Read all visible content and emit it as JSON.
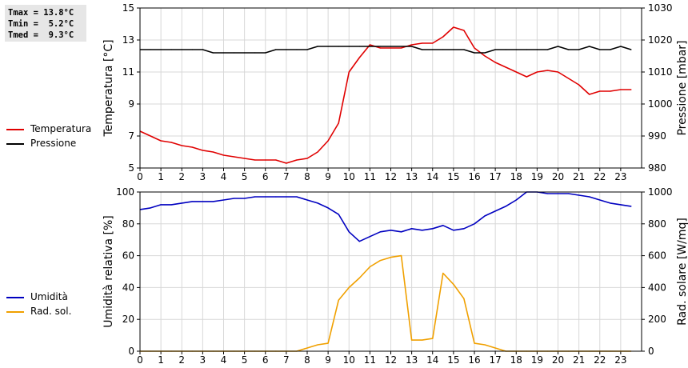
{
  "stats": {
    "tmax_label": "Tmax =",
    "tmax_value": "13.8°C",
    "tmin_label": "Tmin =",
    "tmin_value": "5.2°C",
    "tmed_label": "Tmed =",
    "tmed_value": "9.3°C"
  },
  "legends": {
    "temperatura": {
      "label": "Temperatura",
      "color": "#e00000"
    },
    "pressione": {
      "label": "Pressione",
      "color": "#000000"
    },
    "umidita": {
      "label": "Umidità",
      "color": "#0000c0"
    },
    "radsol": {
      "label": "Rad. sol.",
      "color": "#f0a000"
    }
  },
  "chart_data": [
    {
      "type": "line",
      "xlabel": "",
      "xlim": [
        0,
        24
      ],
      "xticks": [
        0,
        1,
        2,
        3,
        4,
        5,
        6,
        7,
        8,
        9,
        10,
        11,
        12,
        13,
        14,
        15,
        16,
        17,
        18,
        19,
        20,
        21,
        22,
        23
      ],
      "grid": true,
      "y_left": {
        "label": "Temperatura [°C]",
        "lim": [
          5,
          15
        ],
        "ticks": [
          5,
          7,
          9,
          11,
          13,
          15
        ]
      },
      "y_right": {
        "label": "Pressione [mbar]",
        "lim": [
          980,
          1030
        ],
        "ticks": [
          980,
          990,
          1000,
          1010,
          1020,
          1030
        ]
      },
      "series": [
        {
          "name": "Temperatura",
          "axis": "left",
          "color": "#e00000",
          "x": [
            0,
            0.5,
            1,
            1.5,
            2,
            2.5,
            3,
            3.5,
            4,
            4.5,
            5,
            5.5,
            6,
            6.5,
            7,
            7.5,
            8,
            8.5,
            9,
            9.5,
            10,
            10.5,
            11,
            11.5,
            12,
            12.5,
            13,
            13.5,
            14,
            14.5,
            15,
            15.5,
            16,
            16.5,
            17,
            17.5,
            18,
            18.5,
            19,
            19.5,
            20,
            20.5,
            21,
            21.5,
            22,
            22.5,
            23,
            23.5
          ],
          "values": [
            7.3,
            7.0,
            6.7,
            6.6,
            6.4,
            6.3,
            6.1,
            6.0,
            5.8,
            5.7,
            5.6,
            5.5,
            5.5,
            5.5,
            5.3,
            5.5,
            5.6,
            6.0,
            6.7,
            7.8,
            11.0,
            11.9,
            12.7,
            12.5,
            12.5,
            12.5,
            12.7,
            12.8,
            12.8,
            13.2,
            13.8,
            13.6,
            12.5,
            12.0,
            11.6,
            11.3,
            11.0,
            10.7,
            11.0,
            11.1,
            11.0,
            10.6,
            10.2,
            9.6,
            9.8,
            9.8,
            9.9,
            9.9
          ]
        },
        {
          "name": "Pressione",
          "axis": "right",
          "color": "#000000",
          "x": [
            0,
            0.5,
            1,
            1.5,
            2,
            2.5,
            3,
            3.5,
            4,
            4.5,
            5,
            5.5,
            6,
            6.5,
            7,
            7.5,
            8,
            8.5,
            9,
            9.5,
            10,
            10.5,
            11,
            11.5,
            12,
            12.5,
            13,
            13.5,
            14,
            14.5,
            15,
            15.5,
            16,
            16.5,
            17,
            17.5,
            18,
            18.5,
            19,
            19.5,
            20,
            20.5,
            21,
            21.5,
            22,
            22.5,
            23,
            23.5
          ],
          "values": [
            1017,
            1017,
            1017,
            1017,
            1017,
            1017,
            1017,
            1016,
            1016,
            1016,
            1016,
            1016,
            1016,
            1017,
            1017,
            1017,
            1017,
            1018,
            1018,
            1018,
            1018,
            1018,
            1018,
            1018,
            1018,
            1018,
            1018,
            1017,
            1017,
            1017,
            1017,
            1017,
            1016,
            1016,
            1017,
            1017,
            1017,
            1017,
            1017,
            1017,
            1018,
            1017,
            1017,
            1018,
            1017,
            1017,
            1018,
            1017
          ]
        }
      ]
    },
    {
      "type": "line",
      "xlabel": "",
      "xlim": [
        0,
        24
      ],
      "xticks": [
        0,
        1,
        2,
        3,
        4,
        5,
        6,
        7,
        8,
        9,
        10,
        11,
        12,
        13,
        14,
        15,
        16,
        17,
        18,
        19,
        20,
        21,
        22,
        23
      ],
      "grid": true,
      "y_left": {
        "label": "Umidità relativa [%]",
        "lim": [
          0,
          100
        ],
        "ticks": [
          0,
          20,
          40,
          60,
          80,
          100
        ]
      },
      "y_right": {
        "label": "Rad. solare [W/mq]",
        "lim": [
          0,
          1000
        ],
        "ticks": [
          0,
          200,
          400,
          600,
          800,
          1000
        ]
      },
      "series": [
        {
          "name": "Umidità",
          "axis": "left",
          "color": "#0000c0",
          "x": [
            0,
            0.5,
            1,
            1.5,
            2,
            2.5,
            3,
            3.5,
            4,
            4.5,
            5,
            5.5,
            6,
            6.5,
            7,
            7.5,
            8,
            8.5,
            9,
            9.5,
            10,
            10.5,
            11,
            11.5,
            12,
            12.5,
            13,
            13.5,
            14,
            14.5,
            15,
            15.5,
            16,
            16.5,
            17,
            17.5,
            18,
            18.5,
            19,
            19.5,
            20,
            20.5,
            21,
            21.5,
            22,
            22.5,
            23,
            23.5
          ],
          "values": [
            89,
            90,
            92,
            92,
            93,
            94,
            94,
            94,
            95,
            96,
            96,
            97,
            97,
            97,
            97,
            97,
            95,
            93,
            90,
            86,
            75,
            69,
            72,
            75,
            76,
            75,
            77,
            76,
            77,
            79,
            76,
            77,
            80,
            85,
            88,
            91,
            95,
            100,
            100,
            99,
            99,
            99,
            98,
            97,
            95,
            93,
            92,
            91
          ]
        },
        {
          "name": "Rad. sol.",
          "axis": "right",
          "color": "#f0a000",
          "x": [
            0,
            0.5,
            1,
            1.5,
            2,
            2.5,
            3,
            3.5,
            4,
            4.5,
            5,
            5.5,
            6,
            6.5,
            7,
            7.5,
            8,
            8.5,
            9,
            9.5,
            10,
            10.5,
            11,
            11.5,
            12,
            12.5,
            13,
            13.5,
            14,
            14.5,
            15,
            15.5,
            16,
            16.5,
            17,
            17.5,
            18,
            18.5,
            19,
            19.5,
            20,
            20.5,
            21,
            21.5,
            22,
            22.5,
            23,
            23.5
          ],
          "values": [
            0,
            0,
            0,
            0,
            0,
            0,
            0,
            0,
            0,
            0,
            0,
            0,
            0,
            0,
            0,
            0,
            20,
            40,
            50,
            320,
            400,
            460,
            530,
            570,
            590,
            600,
            70,
            70,
            80,
            490,
            420,
            330,
            50,
            40,
            20,
            0,
            0,
            0,
            0,
            0,
            0,
            0,
            0,
            0,
            0,
            0,
            0,
            0
          ]
        }
      ]
    }
  ]
}
